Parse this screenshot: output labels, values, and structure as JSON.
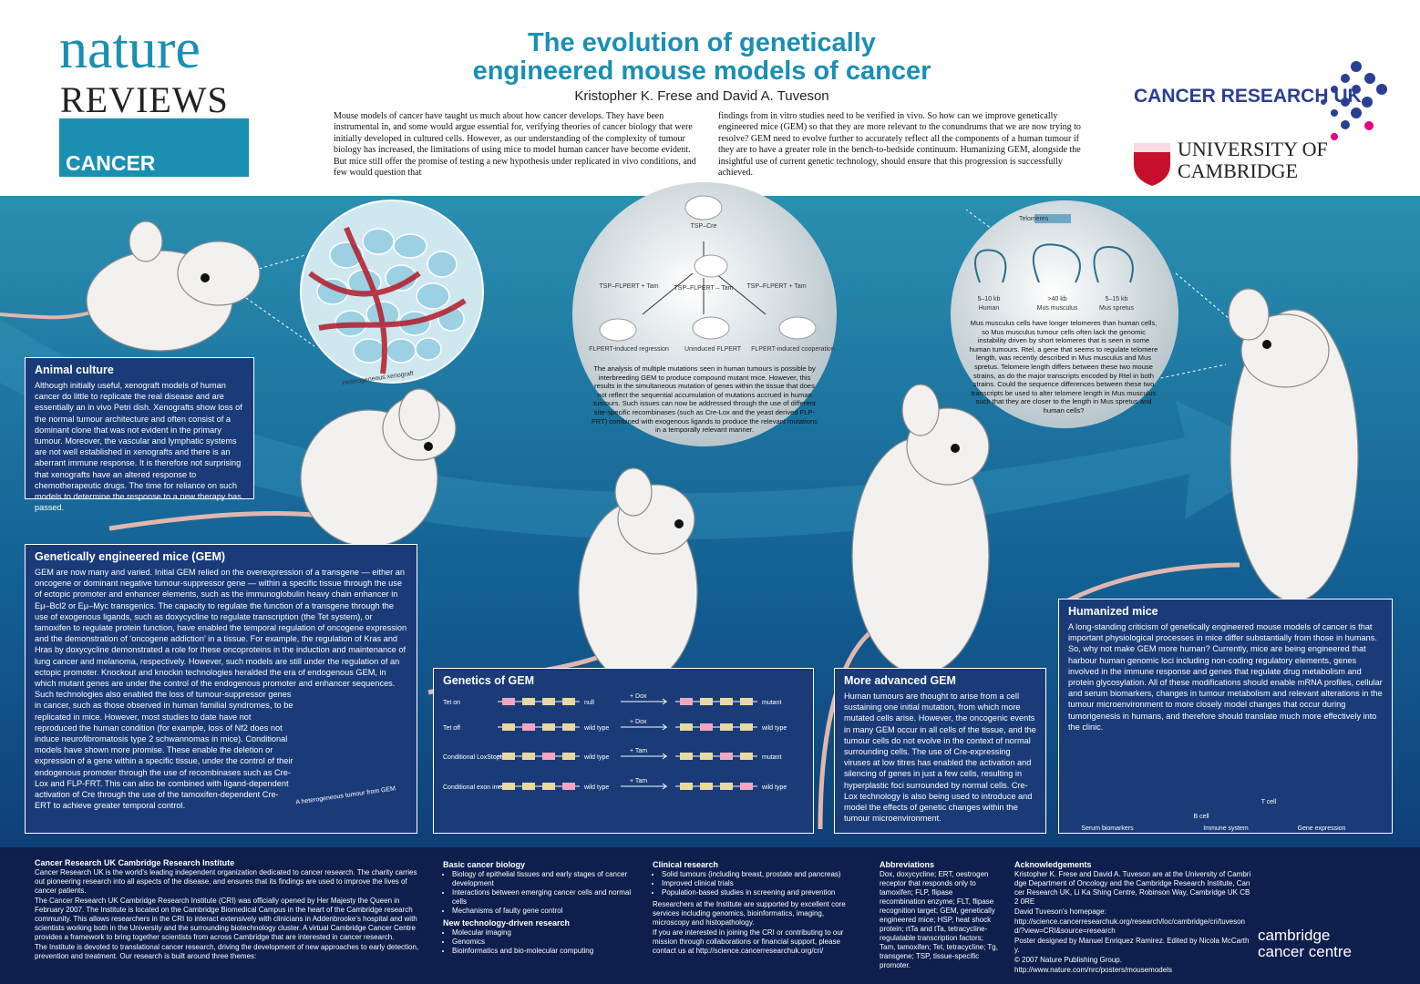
{
  "header": {
    "logo": {
      "nature": "nature",
      "reviews": "REVIEWS",
      "cancer": "CANCER"
    },
    "title": [
      "The evolution of genetically",
      "engineered mouse models of cancer"
    ],
    "authors": "Kristopher K. Frese and David A. Tuveson",
    "intro": [
      "Mouse models of cancer have taught us much about how cancer develops. They have been instrumental in, and some would argue essential for, verifying theories of cancer biology that were initially developed in cultured cells. However, as our understanding of the complexity of tumour biology has increased, the limitations of using mice to model human cancer have become evident. But mice still offer the promise of testing a new hypothesis under replicated in vivo conditions, and few would question that",
      "findings from in vitro studies need to be verified in vivo. So how can we improve genetically engineered mice (GEM) so that they are more relevant to the conundrums that we are now trying to resolve? GEM need to evolve further to accurately reflect all the components of a human tumour if they are to have a greater role in the bench-to-bedside continuum. Humanizing GEM, alongside the insightful use of current genetic technology, should ensure that this progression is successfully achieved."
    ],
    "partners": {
      "cruk": "CANCER RESEARCH UK",
      "cambridge": [
        "UNIVERSITY OF",
        "CAMBRIDGE"
      ]
    }
  },
  "panels": {
    "animal_culture": {
      "title": "Animal culture",
      "body": "Although initially useful, xenograft models of human cancer do little to replicate the real disease and are essentially an in vivo Petri dish. Xenografts show loss of the normal tumour architecture and often consist of a dominant clone that was not evident in the primary tumour. Moreover, the vascular and lymphatic systems are not well established in xenografts and there is an aberrant immune response. It is therefore not surprising that xenografts have an altered response to chemotherapeutic drugs. The time for reliance on such models to determine the response to a new therapy has passed."
    },
    "gem": {
      "title": "Genetically engineered mice (GEM)",
      "body": [
        "GEM are now many and varied. Initial GEM relied on the overexpression of a transgene — either an oncogene or dominant negative tumour-suppressor gene — within a specific tissue through the use of ectopic promoter and enhancer elements, such as the immunoglobulin heavy chain enhancer in Eμ–Bcl2 or Eμ–Myc transgenics. The capacity to regulate the function of a transgene through the use of exogenous ligands, such as doxycycline to regulate transcription (the Tet system), or tamoxifen to regulate protein function, have enabled the temporal regulation of oncogene expression and the demonstration of ‘oncogene addiction’ in a tissue. For example, the regulation of Kras and Hras by doxycycline demonstrated a role for these oncoproteins in the induction and maintenance of lung cancer and melanoma, respectively. However, such models are still under the regulation of an ectopic promoter. Knockout and knockin technologies heralded the era of endogenous GEM, in which mutant genes are under the control of the endogenous promoter and enhancer sequences.",
        "Such technologies also enabled the loss of tumour-suppressor genes in cancer, such as those observed in human familial syndromes, to be replicated in mice. However, most studies to date have not reproduced the human condition (for example, loss of Nf2 does not induce neurofibromatosis type 2 schwannomas in mice). Conditional models have shown more promise. These enable the deletion or expression of a gene within a specific tissue, under the control of their endogenous promoter through the use of recombinases such as Cre-Lox and FLP-FRT. This can also be combined with ligand-dependent activation of Cre through the use of the tamoxifen-dependent Cre-ERT to achieve greater temporal control."
      ],
      "figure_label": "A heterogeneous tumour from GEM"
    },
    "genetics": {
      "title": "Genetics of GEM",
      "rows": [
        "Tet on",
        "Tet off",
        "Conditional LoxStopLox",
        "Conditional exon inverter"
      ],
      "dox": "+ Dox",
      "tam": "+ Tam",
      "outcomes": [
        "null",
        "wild type",
        "wild type",
        "wild type"
      ],
      "outcomes_after": [
        "mutant",
        "wild type",
        "mutant",
        "wild type"
      ]
    },
    "advanced": {
      "title": "More advanced GEM",
      "body": "Human tumours are thought to arise from a cell sustaining one initial mutation, from which more mutated cells arise. However, the oncogenic events in many GEM occur in all cells of the tissue, and the tumour cells do not evolve in the context of normal surrounding cells. The use of Cre-expressing viruses at low titres has enabled the activation and silencing of genes in just a few cells, resulting in hyperplastic foci surrounded by normal cells. Cre-Lox technology is also being used to introduce and model the effects of genetic changes within the tumour microenvironment."
    },
    "humanized": {
      "title": "Humanized mice",
      "body": "A long-standing criticism of genetically engineered mouse models of cancer is that important physiological processes in mice differ substantially from those in humans. So, why not make GEM more human? Currently, mice are being engineered that harbour human genomic loci including non-coding regulatory elements, genes involved in the immune response and genes that regulate drug metabolism and protein glycosylation. All of these modifications should enable mRNA profiles, cellular and serum biomarkers, changes in tumour metabolism and relevant alterations in the tumour microenvironment to more closely model changes that occur during tumorigenesis in humans, and therefore should translate much more effectively into the clinic.",
      "labels": [
        "Serum biomarkers",
        "B cell",
        "T cell",
        "Immune system",
        "Gene expression"
      ]
    }
  },
  "circles": {
    "xenograft": "Heterogeneous xenograft",
    "center": {
      "labels": [
        "TSP–Cre",
        "TSP–FLPERT + Tam",
        "TSP–FLPERT – Tam",
        "TSP–FLPERT + Tam",
        "FLPERT-induced regression",
        "Uninduced FLPERT",
        "FLPERT-induced cooperation"
      ],
      "caption": "The analysis of multiple mutations seen in human tumours is possible by interbreeding GEM to produce compound mutant mice. However, this results in the simultaneous mutation of genes within the tissue that does not reflect the sequential accumulation of mutations accrued in human tumours. Such issues can now be addressed through the use of different site-specific recombinases (such as Cre-Lox and the yeast derived FLP-FRT) combined with exogenous ligands to produce the relevant mutations in a temporally relevant manner."
    },
    "telomere": {
      "labels": [
        "Telomeres",
        "5–10 kb",
        "Human",
        ">40 kb",
        "Mus musculus",
        "5–15 kb",
        "Mus spretus"
      ],
      "caption": "Mus musculus cells have longer telomeres than human cells, so Mus musculus tumour cells often lack the genomic instability driven by short telomeres that is seen in some human tumours. Rtel, a gene that seems to regulate telomere length, was recently described in Mus musculus and Mus spretus. Telomere length differs between these two mouse strains, as do the major transcripts encoded by Rtel in both strains. Could the sequence differences between these two transcripts be used to alter telomere length in Mus musculus such that they are closer to the length in Mus spretus and human cells?"
    }
  },
  "footer": {
    "cri": {
      "title": "Cancer Research UK Cambridge Research Institute",
      "paragraphs": [
        "Cancer Research UK is the world’s leading independent organization dedicated to cancer research. The charity carries out pioneering research into all aspects of the disease, and ensures that its findings are used to improve the lives of cancer patients.",
        "The Cancer Research UK Cambridge Research Institute (CRI) was officially opened by Her Majesty the Queen in February 2007. The Institute is located on the Cambridge Biomedical Campus in the heart of the Cambridge research community. This allows researchers in the CRI to interact extensively with clinicians in Addenbrooke’s hospital and with scientists working both in the University and the surrounding biotechnology cluster. A virtual Cambridge Cancer Centre provides a framework to bring together scientists from across Cambridge that are interested in cancer research.",
        "The Institute is devoted to translational cancer research, driving the development of new approaches to early detection, prevention and treatment. Our research is built around three themes:"
      ]
    },
    "themes": [
      {
        "title": "Basic cancer biology",
        "items": [
          "Biology of epithelial tissues and early stages of cancer development",
          "Interactions between emerging cancer cells and normal cells",
          "Mechanisms of faulty gene control"
        ]
      },
      {
        "title": "New technology-driven research",
        "items": [
          "Molecular imaging",
          "Genomics",
          "Bioinformatics and bio-molecular computing"
        ]
      },
      {
        "title": "Clinical research",
        "items": [
          "Solid tumours (including breast, prostate and pancreas)",
          "Improved clinical trials",
          "Population-based studies in screening and prevention"
        ]
      }
    ],
    "support": [
      "Researchers at the Institute are supported by excellent core services including genomics, bioinformatics, imaging, microscopy and histopathology.",
      "If you are interested in joining the CRI or contributing to our mission through collaborations or financial support, please contact us at http://science.cancerresearchuk.org/cri/"
    ],
    "abbreviations": {
      "title": "Abbreviations",
      "body": "Dox, doxycycline; ERT, oestrogen receptor that responds only to tamoxifen; FLP, flipase recombination enzyme; FLT, flipase recognition target; GEM, genetically engineered mice; HSP, heat shock protein; rtTa and tTa, tetracycline-regulatable transcription factors; Tam, tamoxifen; Tet, tetracycline; Tg, transgene; TSP, tissue-specific promoter."
    },
    "acknowledgements": {
      "title": "Acknowledgements",
      "lines": [
        "Kristopher K. Frese and David A. Tuveson are at the University of Cambridge Department of Oncology and the Cambridge Research Institute, Cancer Research UK, Li Ka Shing Centre, Robinson Way, Cambridge UK CB2 0RE",
        "David Tuveson’s homepage:",
        "http://science.cancerresearchuk.org/research/loc/cambridge/cri/tuvesond/?view=CRI&source=research",
        "Poster designed by Manuel Enriquez Ramirez. Edited by Nicola McCarthy.",
        "© 2007 Nature Publishing Group.",
        "http://www.nature.com/nrc/posters/mousemodels"
      ]
    },
    "ccc": [
      "cambridge",
      "cancer centre"
    ]
  }
}
